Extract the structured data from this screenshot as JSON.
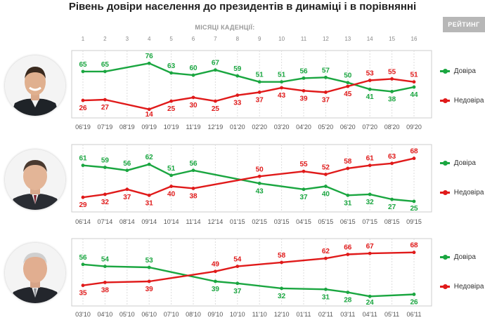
{
  "header": {
    "title": "Рівень довіри населення до президентів в динаміці і в порівнянні",
    "brand": "РЕЙТИНГ",
    "months_label": "МІСЯЦІ КАДЕНЦІЇ:"
  },
  "colors": {
    "trust": "#1aa640",
    "distrust": "#e01a1a",
    "grid": "#dddddd",
    "frame": "#cccccc",
    "axis_text": "#555555"
  },
  "chart_data": [
    {
      "type": "line",
      "title": "Рівень довіри населення до президентів в динаміці і в порівнянні",
      "subject_icon": "president-zelensky-portrait",
      "top_axis_label": "МІСЯЦІ КАДЕНЦІЇ:",
      "top_ticks": [
        "1",
        "2",
        "3",
        "4",
        "5",
        "6",
        "7",
        "8",
        "9",
        "10",
        "11",
        "12",
        "13",
        "14",
        "15",
        "16"
      ],
      "categories": [
        "06'19",
        "07'19",
        "08'19",
        "09'19",
        "10'19",
        "11'19",
        "12'19",
        "01'20",
        "02'20",
        "03'20",
        "04'20",
        "05'20",
        "06'20",
        "07'20",
        "08'20",
        "09'20"
      ],
      "ylim": [
        0,
        100
      ],
      "grid": true,
      "legend_position": "right",
      "series": [
        {
          "name": "Довіра",
          "color": "#1aa640",
          "values": [
            65,
            65,
            null,
            76,
            63,
            60,
            67,
            59,
            51,
            51,
            56,
            57,
            50,
            41,
            38,
            44
          ]
        },
        {
          "name": "Недовіра",
          "color": "#e01a1a",
          "values": [
            26,
            27,
            null,
            14,
            25,
            30,
            25,
            33,
            37,
            43,
            39,
            37,
            45,
            53,
            55,
            51
          ]
        }
      ]
    },
    {
      "type": "line",
      "subject_icon": "president-poroshenko-portrait",
      "categories": [
        "06'14",
        "07'14",
        "08'14",
        "09'14",
        "10'14",
        "11'14",
        "12'14",
        "01'15",
        "02'15",
        "03'15",
        "04'15",
        "05'15",
        "06'15",
        "07'15",
        "08'15",
        "09'15"
      ],
      "ylim": [
        0,
        100
      ],
      "grid": true,
      "legend_position": "right",
      "series": [
        {
          "name": "Довіра",
          "color": "#1aa640",
          "values": [
            61,
            59,
            56,
            62,
            51,
            56,
            null,
            null,
            43,
            null,
            37,
            40,
            31,
            32,
            27,
            25
          ]
        },
        {
          "name": "Недовіра",
          "color": "#e01a1a",
          "values": [
            29,
            32,
            37,
            31,
            40,
            38,
            null,
            null,
            50,
            null,
            55,
            52,
            58,
            61,
            63,
            68
          ]
        }
      ]
    },
    {
      "type": "line",
      "subject_icon": "president-yanukovych-portrait",
      "categories": [
        "03'10",
        "04'10",
        "05'10",
        "06'10",
        "07'10",
        "08'10",
        "09'10",
        "10'10",
        "11'10",
        "12'10",
        "01'11",
        "02'11",
        "03'11",
        "04'11",
        "05'11",
        "06'11"
      ],
      "ylim": [
        0,
        100
      ],
      "grid": true,
      "legend_position": "right",
      "series": [
        {
          "name": "Довіра",
          "color": "#1aa640",
          "values": [
            56,
            54,
            null,
            53,
            null,
            null,
            39,
            37,
            null,
            32,
            null,
            31,
            28,
            24,
            null,
            26
          ]
        },
        {
          "name": "Недовіра",
          "color": "#e01a1a",
          "values": [
            35,
            38,
            null,
            39,
            null,
            null,
            49,
            54,
            null,
            58,
            null,
            62,
            66,
            67,
            null,
            68
          ]
        }
      ]
    }
  ]
}
